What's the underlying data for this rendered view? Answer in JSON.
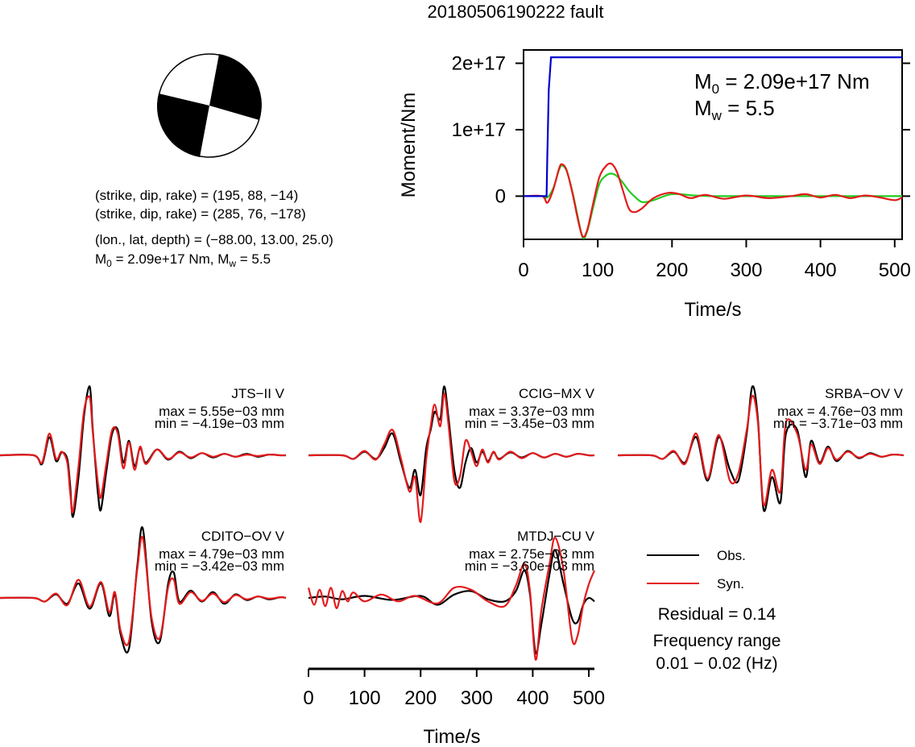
{
  "title": "20180506190222 fault",
  "colors": {
    "observed": "#000000",
    "synthetic": "#e41a1c",
    "moment_rate": "#22cc22",
    "cumulative_moment": "#0000cc"
  },
  "beachball": {
    "plane1": "(strike, dip, rake) = (195, 88, −14)",
    "plane2": "(strike, dip, rake) = (285, 76, −178)",
    "location": "(lon., lat, depth) = (−88.00, 13.00, 25.0)",
    "moment_line": "M",
    "moment_line_sub": "0",
    "moment_line_rest": " = 2.09e+17 Nm, M",
    "moment_line_sub2": "w",
    "moment_line_rest2": " = 5.5"
  },
  "moment_panel": {
    "m0_label": "M",
    "m0_sub": "0",
    "m0_value": " = 2.09e+17 Nm",
    "mw_label": "M",
    "mw_sub": "w",
    "mw_value": " = 5.5"
  },
  "legend": {
    "obs": "Obs.",
    "syn": "Syn.",
    "residual": "Residual = 0.14",
    "freq_title": "Frequency range",
    "freq_value": "0.01 − 0.02 (Hz)"
  },
  "chart_data": [
    {
      "type": "line",
      "title": "20180506190222 fault",
      "xlabel": "Time/s",
      "ylabel": "Moment/Nm",
      "xlim": [
        0,
        510
      ],
      "ylim": [
        -6.5e+16,
        2.2e+17
      ],
      "xticks": [
        0,
        100,
        200,
        300,
        400,
        500
      ],
      "yticks": [
        0,
        1e+17,
        2e+17
      ],
      "ytick_labels": [
        "0",
        "1e+17",
        "2e+17"
      ],
      "series": [
        {
          "color": "#0000cc",
          "x": [
            0,
            31,
            32,
            34,
            37,
            510
          ],
          "y": [
            0,
            0,
            6e+16,
            1.6e+17,
            2.09e+17,
            2.09e+17
          ]
        },
        {
          "color": "#22cc22",
          "x": [
            0,
            25,
            32,
            40,
            48,
            52,
            58,
            66,
            74,
            80,
            86,
            94,
            102,
            110,
            118,
            126,
            134,
            142,
            150,
            160,
            175,
            195,
            210,
            230,
            260,
            300,
            350,
            400,
            450,
            510
          ],
          "y": [
            0,
            0,
            -2000000000000000.0,
            1.2e+16,
            4e+16,
            4.6e+16,
            3.8e+16,
            6000000000000000.0,
            -3.6e+16,
            -6.3e+16,
            -5.2e+16,
            -1.6e+16,
            1.8e+16,
            3e+16,
            3.4e+16,
            3e+16,
            2e+16,
            8000000000000000.0,
            -1000000000000000.0,
            -9000000000000000.0,
            -6000000000000000.0,
            2000000000000000.0,
            3000000000000000.0,
            1000000000000000.0,
            0,
            0,
            0,
            0,
            0,
            0
          ]
        },
        {
          "color": "#e41a1c",
          "x": [
            0,
            25,
            32,
            40,
            48,
            52,
            58,
            66,
            74,
            80,
            86,
            94,
            102,
            110,
            118,
            126,
            134,
            142,
            150,
            160,
            175,
            195,
            210,
            225,
            245,
            270,
            300,
            330,
            360,
            380,
            400,
            420,
            440,
            460,
            480,
            500,
            510
          ],
          "y": [
            0,
            0,
            -1e+16,
            1e+16,
            4.2e+16,
            4.8e+16,
            3.9e+16,
            4000000000000000.0,
            -3.9e+16,
            -6.1e+16,
            -5e+16,
            -1e+16,
            2.8e+16,
            4.4e+16,
            4.9e+16,
            3.6e+16,
            8000000000000000.0,
            -1.9e+16,
            -2.4e+16,
            -1.8e+16,
            -3000000000000000.0,
            5000000000000000.0,
            3000000000000000.0,
            -3000000000000000.0,
            2000000000000000.0,
            -4000000000000000.0,
            1000000000000000.0,
            -3000000000000000.0,
            0,
            3000000000000000.0,
            -2000000000000000.0,
            2000000000000000.0,
            -3000000000000000.0,
            1000000000000000.0,
            -2000000000000000.0,
            -6000000000000000.0,
            -2000000000000000.0
          ]
        }
      ]
    },
    {
      "type": "line",
      "station": "JTS−II V",
      "max": "max = 5.55e−03 mm",
      "min": "min = −4.19e−03 mm",
      "xlim": [
        0,
        510
      ],
      "ylim": [
        -1,
        1
      ],
      "series": [
        {
          "name": "Obs.",
          "color": "#000000",
          "x": [
            0,
            60,
            75,
            88,
            100,
            110,
            120,
            125,
            130,
            140,
            150,
            160,
            165,
            170,
            175,
            180,
            190,
            200,
            210,
            220,
            230,
            240,
            250,
            260,
            280,
            300,
            320,
            340,
            360,
            380,
            400,
            420,
            440,
            460,
            480,
            500,
            510
          ],
          "y": [
            0,
            0,
            -0.12,
            0.25,
            -0.08,
            0.04,
            -0.05,
            -0.4,
            -0.85,
            -0.3,
            0.55,
            0.95,
            0.4,
            -0.1,
            -0.55,
            -0.75,
            -0.2,
            0.3,
            0.35,
            -0.1,
            0.2,
            -0.15,
            0.1,
            -0.1,
            0.08,
            -0.06,
            0.05,
            -0.04,
            0.03,
            -0.03,
            0.02,
            -0.02,
            0.02,
            -0.02,
            0.01,
            0,
            0
          ]
        },
        {
          "name": "Syn.",
          "color": "#e41a1c",
          "x": [
            0,
            60,
            75,
            88,
            100,
            110,
            120,
            125,
            130,
            140,
            150,
            160,
            165,
            170,
            175,
            180,
            190,
            200,
            210,
            220,
            230,
            240,
            250,
            260,
            280,
            300,
            320,
            340,
            360,
            380,
            400,
            420,
            440,
            460,
            480,
            500,
            510
          ],
          "y": [
            0,
            0,
            -0.1,
            0.3,
            -0.05,
            0.05,
            -0.1,
            -0.5,
            -0.78,
            -0.15,
            0.62,
            0.8,
            0.35,
            -0.05,
            -0.4,
            -0.58,
            -0.1,
            0.35,
            0.3,
            -0.18,
            0.18,
            -0.2,
            0.12,
            -0.12,
            0.08,
            -0.05,
            0.04,
            -0.03,
            0.03,
            -0.02,
            0.02,
            -0.02,
            0.01,
            -0.01,
            0.01,
            0,
            0
          ]
        }
      ]
    },
    {
      "type": "line",
      "station": "CCIG−MX V",
      "max": "max = 3.37e−03 mm",
      "min": "min = −3.45e−03 mm",
      "xlim": [
        0,
        510
      ],
      "ylim": [
        -1,
        1
      ],
      "series": [
        {
          "name": "Obs.",
          "color": "#000000",
          "x": [
            0,
            60,
            80,
            100,
            120,
            135,
            150,
            165,
            180,
            190,
            200,
            210,
            218,
            225,
            235,
            242,
            250,
            260,
            270,
            280,
            290,
            300,
            310,
            320,
            330,
            340,
            360,
            380,
            400,
            420,
            440,
            460,
            480,
            500,
            510
          ],
          "y": [
            0,
            0,
            -0.05,
            0.05,
            -0.05,
            0.1,
            0.3,
            -0.1,
            -0.45,
            -0.2,
            -0.55,
            0.1,
            0.35,
            0.6,
            0.5,
            0.95,
            0.5,
            -0.2,
            -0.45,
            -0.1,
            0.1,
            -0.1,
            0.05,
            -0.08,
            0.04,
            -0.05,
            0.04,
            -0.03,
            0.03,
            -0.03,
            0.02,
            -0.02,
            0.02,
            0,
            0
          ]
        },
        {
          "name": "Syn.",
          "color": "#e41a1c",
          "x": [
            0,
            60,
            80,
            100,
            120,
            135,
            150,
            165,
            180,
            190,
            200,
            210,
            218,
            225,
            235,
            242,
            250,
            260,
            270,
            280,
            290,
            300,
            310,
            320,
            330,
            340,
            360,
            380,
            400,
            420,
            440,
            460,
            480,
            500,
            510
          ],
          "y": [
            0,
            0,
            -0.05,
            0.06,
            -0.06,
            0.15,
            0.35,
            -0.05,
            -0.5,
            -0.3,
            -0.92,
            -0.05,
            0.4,
            0.7,
            0.4,
            0.85,
            0.4,
            -0.35,
            -0.3,
            0.2,
            0.05,
            -0.15,
            0.08,
            -0.1,
            0.05,
            -0.06,
            0.05,
            -0.04,
            0.03,
            -0.03,
            0.02,
            -0.02,
            0.02,
            0,
            0
          ]
        }
      ]
    },
    {
      "type": "line",
      "station": "SRBA−OV V",
      "max": "max = 4.76e−03 mm",
      "min": "min = −3.71e−03 mm",
      "xlim": [
        0,
        510
      ],
      "ylim": [
        -1,
        1
      ],
      "series": [
        {
          "name": "Obs.",
          "color": "#000000",
          "x": [
            0,
            60,
            80,
            100,
            120,
            140,
            160,
            180,
            200,
            215,
            230,
            240,
            250,
            260,
            275,
            290,
            300,
            320,
            335,
            345,
            360,
            375,
            390,
            410,
            430,
            450,
            470,
            490,
            510
          ],
          "y": [
            0,
            0,
            -0.05,
            0.05,
            -0.1,
            0.25,
            -0.35,
            0.25,
            -0.2,
            -0.35,
            0.3,
            0.95,
            0.5,
            -0.75,
            -0.3,
            -0.65,
            0.3,
            0.35,
            -0.3,
            0.2,
            -0.1,
            0.12,
            -0.08,
            0.06,
            -0.04,
            0.03,
            -0.02,
            0.01,
            0
          ]
        },
        {
          "name": "Syn.",
          "color": "#e41a1c",
          "x": [
            0,
            60,
            80,
            100,
            120,
            140,
            160,
            180,
            200,
            215,
            230,
            240,
            250,
            260,
            275,
            290,
            300,
            320,
            335,
            345,
            360,
            375,
            390,
            410,
            430,
            450,
            470,
            490,
            510
          ],
          "y": [
            0,
            0,
            -0.05,
            0.06,
            -0.12,
            0.3,
            -0.32,
            0.28,
            -0.35,
            -0.25,
            0.35,
            0.82,
            0.45,
            -0.68,
            -0.2,
            -0.5,
            0.45,
            0.3,
            -0.2,
            0.15,
            -0.12,
            0.1,
            -0.06,
            0.05,
            -0.03,
            0.02,
            -0.02,
            0.01,
            0
          ]
        }
      ]
    },
    {
      "type": "line",
      "station": "CDITO−OV V",
      "max": "max = 4.79e−03 mm",
      "min": "min = −3.42e−03 mm",
      "xlim": [
        0,
        510
      ],
      "ylim": [
        -1,
        1
      ],
      "series": [
        {
          "name": "Obs.",
          "color": "#000000",
          "x": [
            0,
            60,
            80,
            100,
            120,
            140,
            160,
            180,
            195,
            205,
            215,
            230,
            245,
            255,
            270,
            285,
            300,
            310,
            320,
            340,
            360,
            380,
            400,
            420,
            440,
            460,
            480,
            500,
            510
          ],
          "y": [
            0,
            0,
            -0.05,
            0.05,
            -0.08,
            0.2,
            -0.15,
            0.2,
            -0.25,
            0.05,
            -0.5,
            -0.7,
            0.45,
            0.95,
            -0.3,
            -0.6,
            0.2,
            0.35,
            -0.05,
            0.1,
            -0.05,
            0.08,
            -0.08,
            0.05,
            -0.03,
            0.02,
            -0.02,
            0.01,
            0
          ]
        },
        {
          "name": "Syn.",
          "color": "#e41a1c",
          "x": [
            0,
            60,
            80,
            100,
            120,
            140,
            160,
            180,
            195,
            205,
            215,
            230,
            245,
            255,
            270,
            285,
            300,
            310,
            320,
            340,
            360,
            380,
            400,
            420,
            440,
            460,
            480,
            500,
            510
          ],
          "y": [
            0,
            0,
            -0.05,
            0.06,
            -0.1,
            0.25,
            -0.12,
            0.22,
            -0.2,
            0.08,
            -0.45,
            -0.6,
            0.4,
            0.82,
            -0.25,
            -0.55,
            0.15,
            0.25,
            -0.08,
            0.08,
            -0.04,
            0.06,
            -0.06,
            0.04,
            -0.02,
            0.02,
            -0.01,
            0.01,
            0
          ]
        }
      ]
    },
    {
      "type": "line",
      "station": "MTDJ−CU V",
      "max": "max = 2.75e−03 mm",
      "min": "min = −3.60e−03 mm",
      "xlim": [
        0,
        510
      ],
      "ylim": [
        -1,
        1
      ],
      "xlabel": "Time/s",
      "xticks": [
        0,
        100,
        200,
        300,
        400,
        500
      ],
      "series": [
        {
          "name": "Obs.",
          "color": "#000000",
          "x": [
            0,
            30,
            60,
            100,
            150,
            200,
            230,
            260,
            290,
            320,
            350,
            370,
            385,
            395,
            405,
            415,
            430,
            440,
            455,
            470,
            480,
            490,
            500,
            510
          ],
          "y": [
            0,
            0.02,
            -0.02,
            0.03,
            -0.03,
            0.03,
            -0.1,
            0.05,
            0.1,
            -0.02,
            -0.05,
            0.1,
            0.4,
            0.05,
            -0.8,
            -0.4,
            0.35,
            0.7,
            0.2,
            -0.3,
            -0.35,
            -0.1,
            0.0,
            -0.05
          ]
        },
        {
          "name": "Syn.",
          "color": "#e41a1c",
          "x": [
            0,
            10,
            20,
            30,
            40,
            50,
            60,
            70,
            80,
            100,
            130,
            160,
            190,
            230,
            260,
            290,
            320,
            350,
            370,
            385,
            395,
            405,
            415,
            430,
            440,
            455,
            470,
            480,
            490,
            500,
            510
          ],
          "y": [
            0.15,
            -0.1,
            0.12,
            -0.12,
            0.15,
            -0.15,
            0.1,
            -0.05,
            0.08,
            -0.05,
            0.05,
            -0.05,
            0.03,
            -0.08,
            0.15,
            0.12,
            -0.05,
            -0.12,
            0.18,
            0.5,
            0.1,
            -0.9,
            -0.2,
            0.5,
            0.88,
            0.4,
            -0.6,
            -0.55,
            -0.1,
            0.2,
            0.4
          ]
        }
      ]
    }
  ]
}
